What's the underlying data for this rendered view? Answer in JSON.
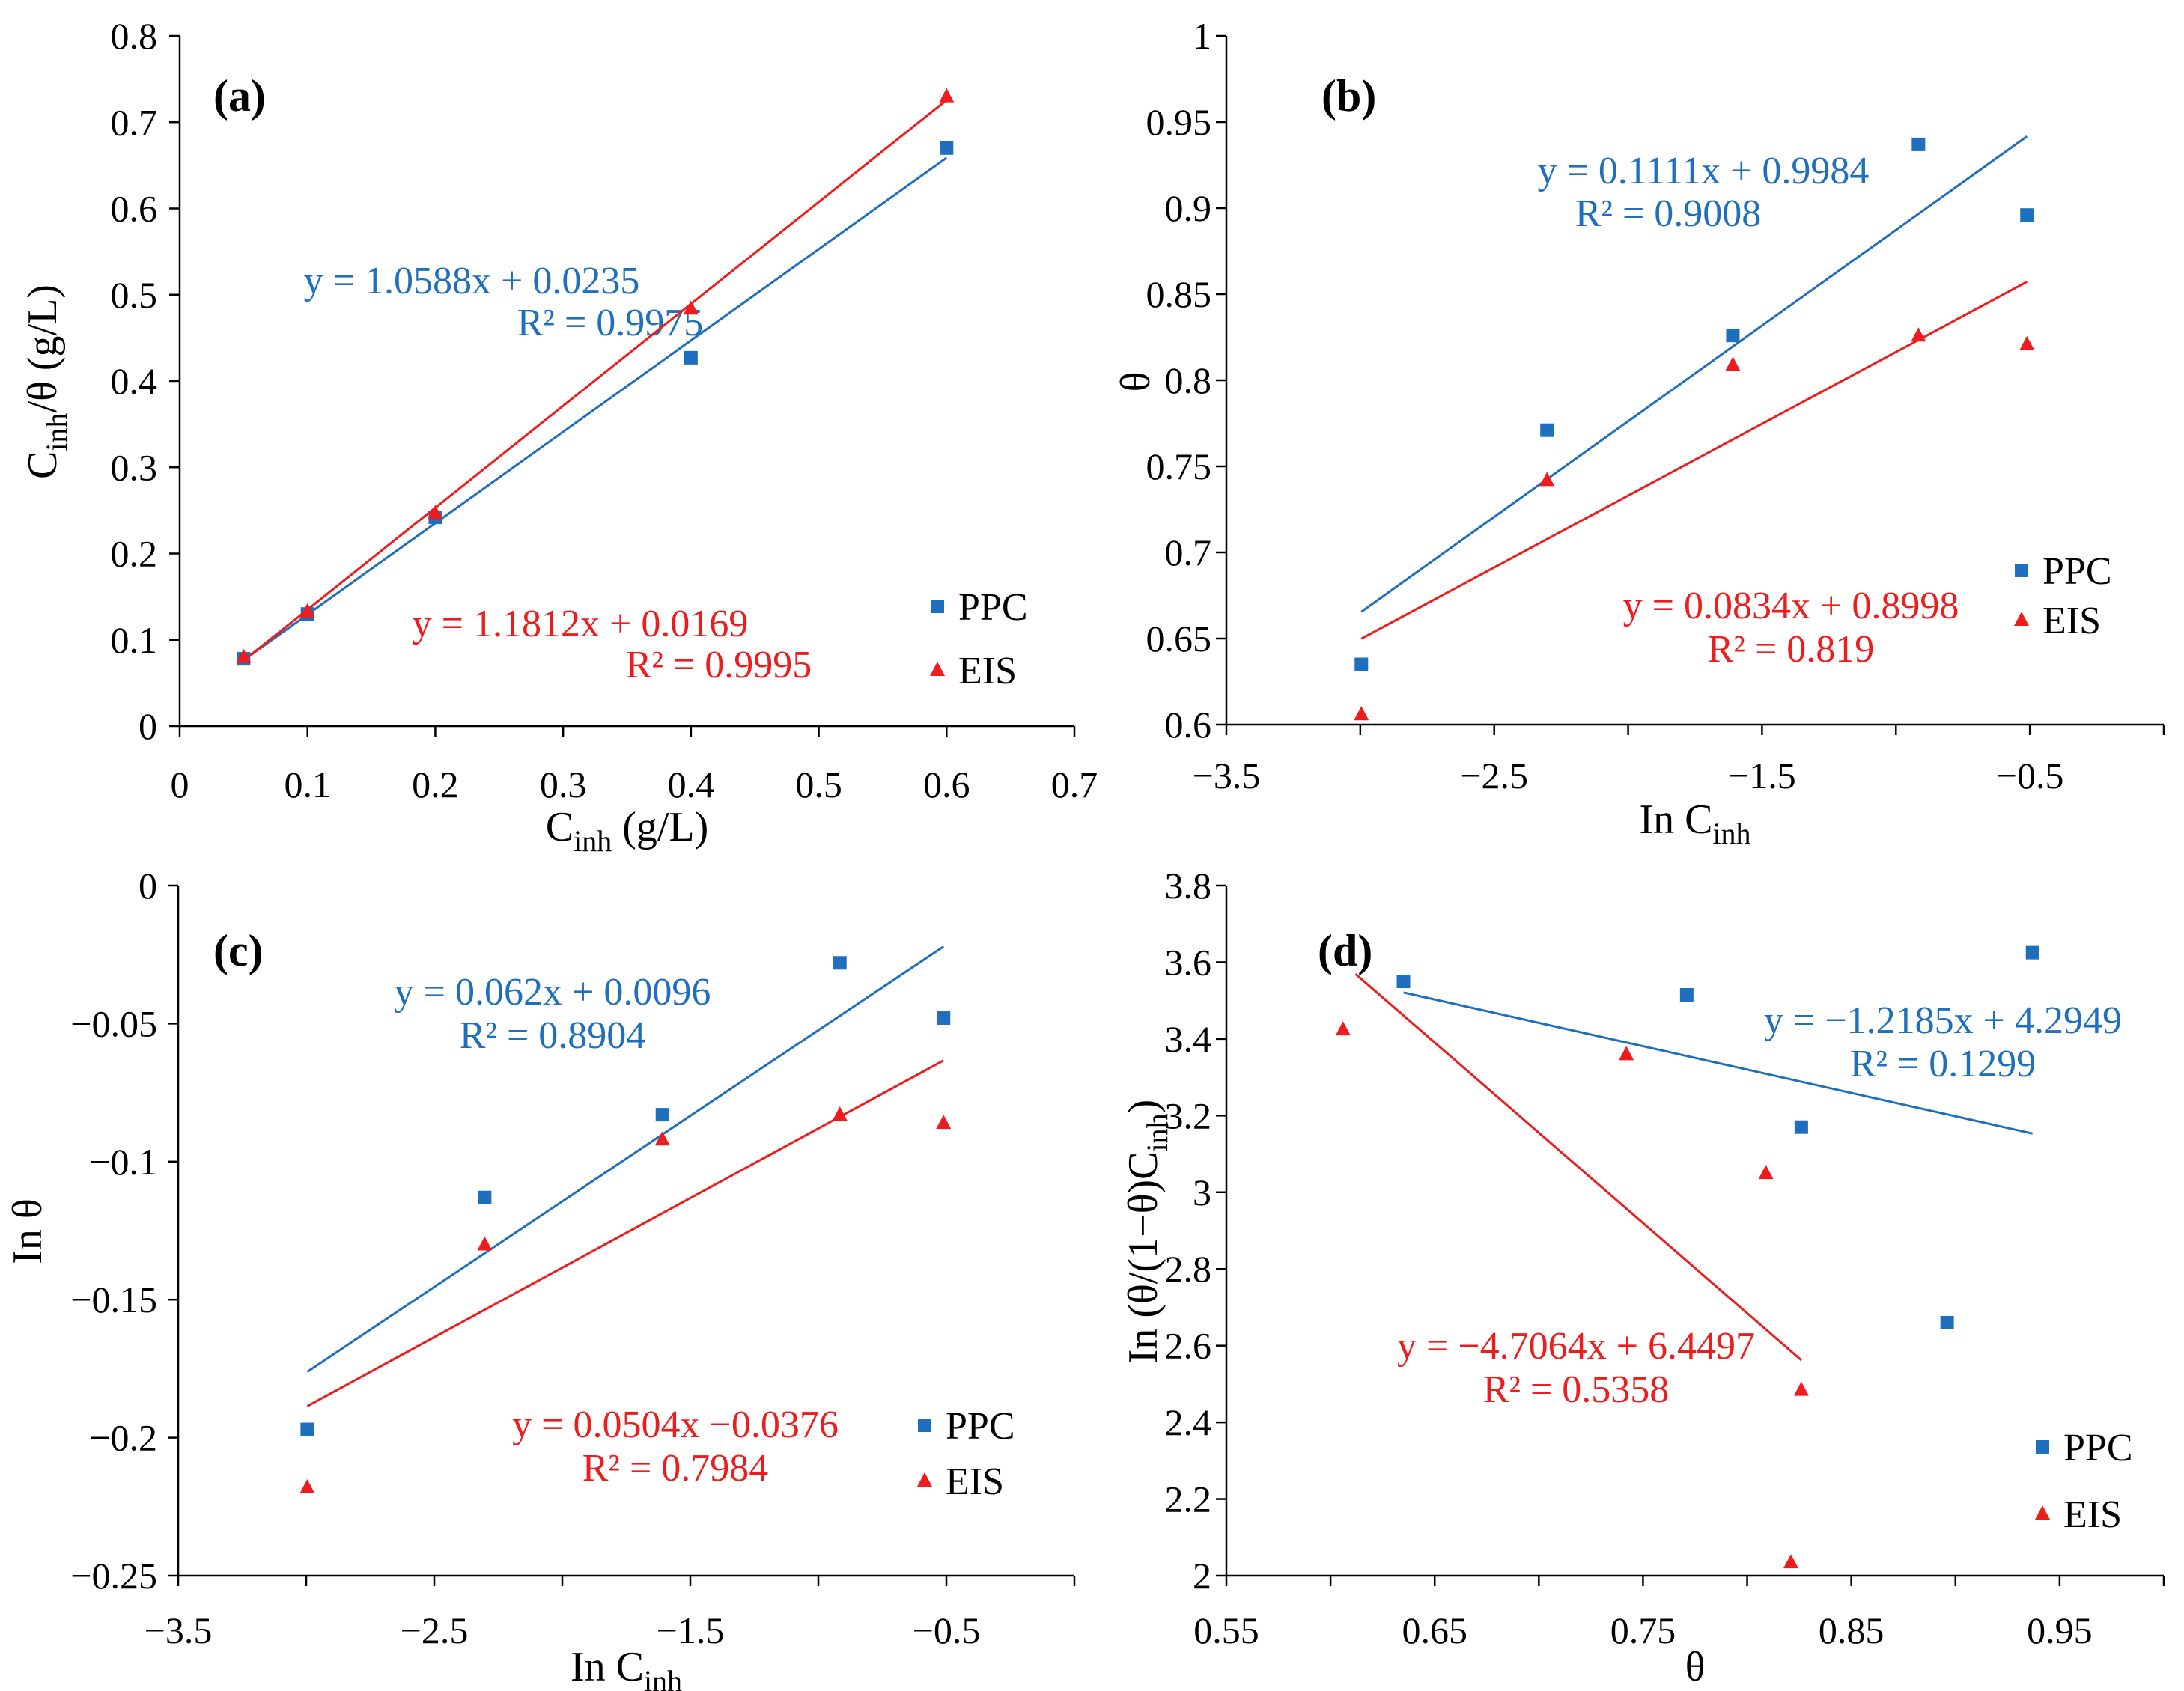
{
  "colors": {
    "ppc": "#1f6fbf",
    "eis": "#ee1c1c",
    "axis": "#000000",
    "background": "#ffffff"
  },
  "chart_data": [
    {
      "type": "scatter",
      "panel_label": "(a)",
      "xlabel_main": "C",
      "xlabel_sub": "inh",
      "xlabel_rest": " (g/L)",
      "ylabel_main": "C",
      "ylabel_sub": "inh",
      "ylabel_rest": "/θ (g/L)",
      "xlim": [
        0,
        0.7
      ],
      "ylim": [
        0,
        0.8
      ],
      "xticks": [
        0,
        0.1,
        0.2,
        0.3,
        0.4,
        0.5,
        0.6,
        0.7
      ],
      "xtick_labels": [
        "0",
        "0.1",
        "0.2",
        "0.3",
        "0.4",
        "0.5",
        "0.6",
        "0.7"
      ],
      "yticks": [
        0,
        0.1,
        0.2,
        0.3,
        0.4,
        0.5,
        0.6,
        0.7,
        0.8
      ],
      "ytick_labels": [
        "0",
        "0.1",
        "0.2",
        "0.3",
        "0.4",
        "0.5",
        "0.6",
        "0.7",
        "0.8"
      ],
      "legend": [
        "PPC",
        "EIS"
      ],
      "series": [
        {
          "name": "PPC",
          "marker": "square",
          "x": [
            0.05,
            0.1,
            0.2,
            0.4,
            0.6
          ],
          "y": [
            0.078,
            0.13,
            0.242,
            0.427,
            0.67
          ],
          "fit": {
            "slope": 1.0588,
            "intercept": 0.0235,
            "x_range": [
              0.05,
              0.6
            ]
          },
          "equation": "y = 1.0588x + 0.0235",
          "r2": "R² = 0.9975"
        },
        {
          "name": "EIS",
          "marker": "triangle",
          "x": [
            0.05,
            0.1,
            0.2,
            0.4,
            0.6
          ],
          "y": [
            0.08,
            0.133,
            0.247,
            0.484,
            0.73
          ],
          "fit": {
            "slope": 1.1812,
            "intercept": 0.0169,
            "x_range": [
              0.05,
              0.6
            ]
          },
          "equation": "y = 1.1812x + 0.0169",
          "r2": "R² = 0.9995"
        }
      ]
    },
    {
      "type": "scatter",
      "panel_label": "(b)",
      "xlabel_main": "In C",
      "xlabel_sub": "inh",
      "xlabel_rest": "",
      "ylabel_main": "θ",
      "ylabel_sub": "",
      "ylabel_rest": "",
      "xlim": [
        -3.5,
        0
      ],
      "ylim": [
        0.6,
        1.0
      ],
      "xticks": [
        -3.5,
        -2.5,
        -1.5,
        -0.5
      ],
      "xtick_labels": [
        "−3.5",
        "−2.5",
        "−1.5",
        "−0.5"
      ],
      "yticks": [
        0.6,
        0.65,
        0.7,
        0.75,
        0.8,
        0.85,
        0.9,
        0.95,
        1.0
      ],
      "ytick_labels": [
        "0.6",
        "0.65",
        "0.7",
        "0.75",
        "0.8",
        "0.85",
        "0.9",
        "0.95",
        "1"
      ],
      "legend": [
        "PPC",
        "EIS"
      ],
      "series": [
        {
          "name": "PPC",
          "marker": "square",
          "x": [
            -2.996,
            -2.303,
            -1.609,
            -0.916,
            -0.511
          ],
          "y": [
            0.635,
            0.771,
            0.826,
            0.937,
            0.896
          ],
          "fit": {
            "slope": 0.1111,
            "intercept": 0.9984,
            "x_range": [
              -2.996,
              -0.511
            ]
          },
          "equation": "y = 0.1111x + 0.9984",
          "r2": "R² = 0.9008"
        },
        {
          "name": "EIS",
          "marker": "triangle",
          "x": [
            -2.996,
            -2.303,
            -1.609,
            -0.916,
            -0.511
          ],
          "y": [
            0.606,
            0.742,
            0.809,
            0.826,
            0.821
          ],
          "fit": {
            "slope": 0.0834,
            "intercept": 0.8998,
            "x_range": [
              -2.996,
              -0.511
            ]
          },
          "equation": "y = 0.0834x + 0.8998",
          "r2": "R² = 0.819"
        }
      ]
    },
    {
      "type": "scatter",
      "panel_label": "(c)",
      "xlabel_main": "In C",
      "xlabel_sub": "inh",
      "xlabel_rest": "",
      "ylabel_main": "In θ",
      "ylabel_sub": "",
      "ylabel_rest": "",
      "xlim": [
        -3.5,
        0
      ],
      "ylim": [
        -0.25,
        0
      ],
      "xticks": [
        -3.5,
        -2.5,
        -1.5,
        -0.5
      ],
      "xtick_labels": [
        "−3.5",
        "−2.5",
        "−1.5",
        "−0.5"
      ],
      "yticks": [
        -0.25,
        -0.2,
        -0.15,
        -0.1,
        -0.05,
        0
      ],
      "ytick_labels": [
        "−0.25",
        "−0.2",
        "−0.15",
        "−0.1",
        "−0.05",
        "0"
      ],
      "legend": [
        "PPC",
        "EIS"
      ],
      "series": [
        {
          "name": "PPC",
          "marker": "square",
          "x": [
            -2.996,
            -2.303,
            -1.609,
            -0.916,
            -0.511
          ],
          "y": [
            -0.197,
            -0.113,
            -0.083,
            -0.028,
            -0.048
          ],
          "fit": {
            "slope": 0.062,
            "intercept": 0.0096,
            "x_range": [
              -2.996,
              -0.511
            ]
          },
          "equation": "y = 0.062x + 0.0096",
          "r2": "R² = 0.8904"
        },
        {
          "name": "EIS",
          "marker": "triangle",
          "x": [
            -2.996,
            -2.303,
            -1.609,
            -0.916,
            -0.511
          ],
          "y": [
            -0.218,
            -0.13,
            -0.092,
            -0.083,
            -0.086
          ],
          "fit": {
            "slope": 0.0504,
            "intercept": -0.0376,
            "x_range": [
              -2.996,
              -0.511
            ]
          },
          "equation": "y = 0.0504x −0.0376",
          "r2": "R² = 0.7984"
        }
      ]
    },
    {
      "type": "scatter",
      "panel_label": "(d)",
      "xlabel_main": "θ",
      "xlabel_sub": "",
      "xlabel_rest": "",
      "ylabel_main": "In (θ/(1−θ)C",
      "ylabel_sub": "inh",
      "ylabel_rest": ")",
      "xlim": [
        0.55,
        1.0
      ],
      "ylim": [
        2.0,
        3.8
      ],
      "xticks": [
        0.55,
        0.65,
        0.75,
        0.85,
        0.95
      ],
      "xtick_labels": [
        "0.55",
        "0.65",
        "0.75",
        "0.85",
        "0.95"
      ],
      "yticks": [
        2.0,
        2.2,
        2.4,
        2.6,
        2.8,
        3.0,
        3.2,
        3.4,
        3.6,
        3.8
      ],
      "ytick_labels": [
        "2",
        "2.2",
        "2.4",
        "2.6",
        "2.8",
        "3",
        "3.2",
        "3.4",
        "3.6",
        "3.8"
      ],
      "legend": [
        "PPC",
        "EIS"
      ],
      "series": [
        {
          "name": "PPC",
          "marker": "square",
          "x": [
            0.635,
            0.771,
            0.826,
            0.896,
            0.937
          ],
          "y": [
            3.55,
            3.515,
            3.17,
            2.66,
            3.625
          ],
          "fit": {
            "slope": -1.2185,
            "intercept": 4.2949,
            "x_range": [
              0.635,
              0.937
            ]
          },
          "equation": "y = −1.2185x + 4.2949",
          "r2": "R² = 0.1299"
        },
        {
          "name": "EIS",
          "marker": "triangle",
          "x": [
            0.606,
            0.742,
            0.809,
            0.821,
            0.826
          ],
          "y": [
            3.425,
            3.36,
            3.05,
            2.035,
            2.485
          ],
          "fit": {
            "slope": -4.7064,
            "intercept": 6.4497,
            "x_range": [
              0.612,
              0.826
            ]
          },
          "equation": "y = −4.7064x + 6.4497",
          "r2": "R² = 0.5358"
        }
      ]
    }
  ]
}
